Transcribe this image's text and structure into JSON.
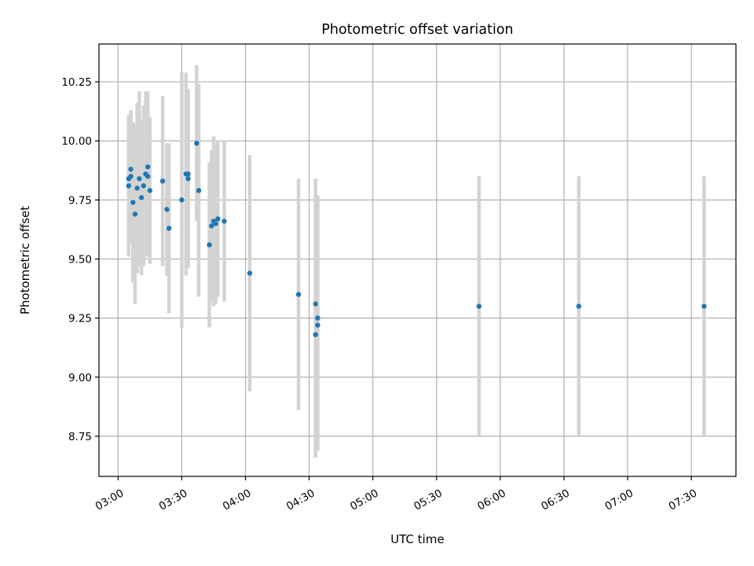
{
  "chart_data": {
    "type": "scatter",
    "title": "Photometric offset variation",
    "xlabel": "UTC time",
    "ylabel": "Photometric offset",
    "x_ticks": [
      "03:00",
      "03:30",
      "04:00",
      "04:30",
      "05:00",
      "05:30",
      "06:00",
      "06:30",
      "07:00",
      "07:30"
    ],
    "y_ticks": [
      "8.75",
      "9.00",
      "9.25",
      "9.50",
      "9.75",
      "10.00",
      "10.25"
    ],
    "xlim": [
      "02:51",
      "07:51"
    ],
    "ylim": [
      8.58,
      10.41
    ],
    "grid": true,
    "colors": {
      "point": "#1f77b4",
      "errorbar": "#d3d3d3",
      "grid": "#b0b0b0"
    },
    "points": [
      {
        "x": "03:05",
        "y": 9.81,
        "err": 0.3
      },
      {
        "x": "03:05",
        "y": 9.84,
        "err": 0.26
      },
      {
        "x": "03:06",
        "y": 9.88,
        "err": 0.25
      },
      {
        "x": "03:06",
        "y": 9.85,
        "err": 0.28
      },
      {
        "x": "03:07",
        "y": 9.74,
        "err": 0.34
      },
      {
        "x": "03:08",
        "y": 9.69,
        "err": 0.38
      },
      {
        "x": "03:09",
        "y": 9.8,
        "err": 0.36
      },
      {
        "x": "03:10",
        "y": 9.84,
        "err": 0.37
      },
      {
        "x": "03:11",
        "y": 9.76,
        "err": 0.33
      },
      {
        "x": "03:12",
        "y": 9.81,
        "err": 0.34
      },
      {
        "x": "03:13",
        "y": 9.86,
        "err": 0.35
      },
      {
        "x": "03:14",
        "y": 9.89,
        "err": 0.32
      },
      {
        "x": "03:14",
        "y": 9.85,
        "err": 0.34
      },
      {
        "x": "03:15",
        "y": 9.79,
        "err": 0.31
      },
      {
        "x": "03:21",
        "y": 9.83,
        "err": 0.36
      },
      {
        "x": "03:23",
        "y": 9.71,
        "err": 0.28
      },
      {
        "x": "03:24",
        "y": 9.63,
        "err": 0.36
      },
      {
        "x": "03:30",
        "y": 9.75,
        "err": 0.54
      },
      {
        "x": "03:32",
        "y": 9.86,
        "err": 0.43
      },
      {
        "x": "03:33",
        "y": 9.84,
        "err": 0.38
      },
      {
        "x": "03:33",
        "y": 9.86,
        "err": 0.36
      },
      {
        "x": "03:37",
        "y": 9.99,
        "err": 0.33
      },
      {
        "x": "03:38",
        "y": 9.79,
        "err": 0.45
      },
      {
        "x": "03:43",
        "y": 9.56,
        "err": 0.35
      },
      {
        "x": "03:44",
        "y": 9.64,
        "err": 0.32
      },
      {
        "x": "03:45",
        "y": 9.66,
        "err": 0.36
      },
      {
        "x": "03:46",
        "y": 9.65,
        "err": 0.34
      },
      {
        "x": "03:47",
        "y": 9.67,
        "err": 0.33
      },
      {
        "x": "03:50",
        "y": 9.66,
        "err": 0.34
      },
      {
        "x": "04:02",
        "y": 9.44,
        "err": 0.5
      },
      {
        "x": "04:25",
        "y": 9.35,
        "err": 0.49
      },
      {
        "x": "04:33",
        "y": 9.31,
        "err": 0.53
      },
      {
        "x": "04:33",
        "y": 9.18,
        "err": 0.52
      },
      {
        "x": "04:34",
        "y": 9.25,
        "err": 0.52
      },
      {
        "x": "04:34",
        "y": 9.22,
        "err": 0.53
      },
      {
        "x": "05:50",
        "y": 9.3,
        "err": 0.55
      },
      {
        "x": "06:37",
        "y": 9.3,
        "err": 0.55
      },
      {
        "x": "07:36",
        "y": 9.3,
        "err": 0.55
      }
    ]
  }
}
